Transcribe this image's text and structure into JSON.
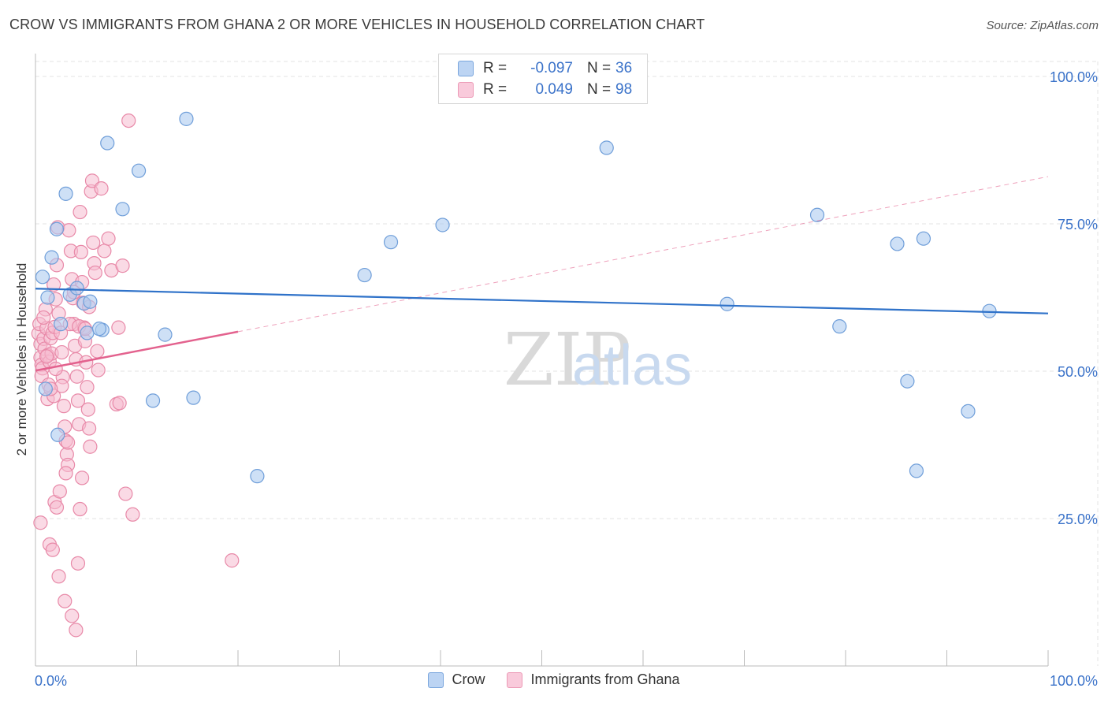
{
  "title": "CROW VS IMMIGRANTS FROM GHANA 2 OR MORE VEHICLES IN HOUSEHOLD CORRELATION CHART",
  "source": "Source: ZipAtlas.com",
  "watermark": {
    "zip": "ZIP",
    "atlas": "atlas"
  },
  "legend_top": {
    "rows": [
      {
        "r_label": "R =",
        "r_value": "-0.097",
        "n_label": "N =",
        "n_value": "36"
      },
      {
        "r_label": "R =",
        "r_value": "0.049",
        "n_label": "N =",
        "n_value": "98"
      }
    ]
  },
  "legend_bottom": {
    "crow": "Crow",
    "ghana": "Immigrants from Ghana"
  },
  "colors": {
    "crow_fill": "#aecbf0",
    "crow_stroke": "#6f9ed9",
    "crow_line": "#2f72c9",
    "ghana_fill": "#f6bcd0",
    "ghana_stroke": "#e889a8",
    "ghana_line": "#e3628e",
    "axis_text": "#3a72c9",
    "grid": "#e3e3e3"
  },
  "chart_data": {
    "type": "scatter",
    "title": "CROW VS IMMIGRANTS FROM GHANA 2 OR MORE VEHICLES IN HOUSEHOLD CORRELATION CHART",
    "xlabel": "",
    "ylabel": "2 or more Vehicles in Household",
    "xlim": [
      0,
      100
    ],
    "ylim": [
      0,
      100
    ],
    "x_tick_labels": [
      "0.0%",
      "100.0%"
    ],
    "y_tick_labels": [
      {
        "value": 100,
        "label": "100.0%"
      },
      {
        "value": 75,
        "label": "75.0%"
      },
      {
        "value": 50,
        "label": "50.0%"
      },
      {
        "value": 25,
        "label": "25.0%"
      }
    ],
    "series": [
      {
        "name": "Crow",
        "r": -0.097,
        "n": 36,
        "trend": {
          "x": [
            0,
            100
          ],
          "y": [
            64.0,
            59.8
          ],
          "dashed_extension": false
        },
        "points": [
          [
            0.7,
            66.0
          ],
          [
            1.2,
            62.5
          ],
          [
            1.6,
            69.3
          ],
          [
            2.1,
            74.1
          ],
          [
            2.5,
            58.0
          ],
          [
            3.0,
            80.1
          ],
          [
            3.4,
            63.0
          ],
          [
            4.1,
            64.1
          ],
          [
            4.8,
            61.5
          ],
          [
            5.4,
            61.8
          ],
          [
            6.6,
            57.0
          ],
          [
            5.1,
            56.5
          ],
          [
            7.1,
            88.7
          ],
          [
            8.6,
            77.5
          ],
          [
            10.2,
            84.0
          ],
          [
            12.8,
            56.2
          ],
          [
            14.9,
            92.8
          ],
          [
            15.6,
            45.5
          ],
          [
            11.6,
            45.0
          ],
          [
            21.9,
            32.2
          ],
          [
            32.5,
            66.3
          ],
          [
            35.1,
            71.9
          ],
          [
            40.2,
            74.8
          ],
          [
            56.4,
            87.9
          ],
          [
            68.3,
            61.4
          ],
          [
            77.2,
            76.5
          ],
          [
            79.4,
            57.6
          ],
          [
            85.1,
            71.6
          ],
          [
            86.1,
            48.3
          ],
          [
            87.7,
            72.5
          ],
          [
            87.0,
            33.1
          ],
          [
            92.1,
            43.2
          ],
          [
            94.2,
            60.2
          ],
          [
            1.0,
            47.0
          ],
          [
            2.2,
            39.2
          ],
          [
            6.3,
            57.2
          ]
        ]
      },
      {
        "name": "Immigrants from Ghana",
        "r": 0.049,
        "n": 98,
        "trend": {
          "x": [
            0,
            20
          ],
          "y": [
            50.1,
            56.7
          ],
          "dashed_extension_to": [
            100,
            83.0
          ]
        },
        "points": [
          [
            0.3,
            56.4
          ],
          [
            0.4,
            58.0
          ],
          [
            0.5,
            54.6
          ],
          [
            0.5,
            52.3
          ],
          [
            0.6,
            51.1
          ],
          [
            0.7,
            50.5
          ],
          [
            0.6,
            49.2
          ],
          [
            0.8,
            55.5
          ],
          [
            0.9,
            53.8
          ],
          [
            1.0,
            60.5
          ],
          [
            1.1,
            57.3
          ],
          [
            1.2,
            52.7
          ],
          [
            1.2,
            45.3
          ],
          [
            1.3,
            47.7
          ],
          [
            1.4,
            51.6
          ],
          [
            1.5,
            55.6
          ],
          [
            1.6,
            53.0
          ],
          [
            1.7,
            56.5
          ],
          [
            1.8,
            64.7
          ],
          [
            1.9,
            57.5
          ],
          [
            2.0,
            62.2
          ],
          [
            2.1,
            68.0
          ],
          [
            2.2,
            74.4
          ],
          [
            2.3,
            59.8
          ],
          [
            2.5,
            56.5
          ],
          [
            2.6,
            53.2
          ],
          [
            2.7,
            49.0
          ],
          [
            2.8,
            44.1
          ],
          [
            2.9,
            40.6
          ],
          [
            3.0,
            38.2
          ],
          [
            3.1,
            35.9
          ],
          [
            3.2,
            34.1
          ],
          [
            3.3,
            73.9
          ],
          [
            3.5,
            70.4
          ],
          [
            3.6,
            65.6
          ],
          [
            3.7,
            62.4
          ],
          [
            3.8,
            58.0
          ],
          [
            3.9,
            54.3
          ],
          [
            4.0,
            52.0
          ],
          [
            4.1,
            49.1
          ],
          [
            4.2,
            45.0
          ],
          [
            4.3,
            41.0
          ],
          [
            4.4,
            77.0
          ],
          [
            4.5,
            70.2
          ],
          [
            4.6,
            65.1
          ],
          [
            4.7,
            61.6
          ],
          [
            4.8,
            57.4
          ],
          [
            4.9,
            55.1
          ],
          [
            5.0,
            51.5
          ],
          [
            5.1,
            47.3
          ],
          [
            5.2,
            43.5
          ],
          [
            5.3,
            40.3
          ],
          [
            5.4,
            37.2
          ],
          [
            5.5,
            80.5
          ],
          [
            5.6,
            82.3
          ],
          [
            5.7,
            71.8
          ],
          [
            5.8,
            68.3
          ],
          [
            5.9,
            66.7
          ],
          [
            6.1,
            53.4
          ],
          [
            6.2,
            50.2
          ],
          [
            6.5,
            81.0
          ],
          [
            6.8,
            70.4
          ],
          [
            7.2,
            72.5
          ],
          [
            7.5,
            67.1
          ],
          [
            8.0,
            44.4
          ],
          [
            8.2,
            57.4
          ],
          [
            8.6,
            67.9
          ],
          [
            8.9,
            29.2
          ],
          [
            9.2,
            92.5
          ],
          [
            9.6,
            25.7
          ],
          [
            0.5,
            24.3
          ],
          [
            1.4,
            20.6
          ],
          [
            1.7,
            19.7
          ],
          [
            2.3,
            15.2
          ],
          [
            2.9,
            11.0
          ],
          [
            3.6,
            8.5
          ],
          [
            4.0,
            6.1
          ],
          [
            4.2,
            17.4
          ],
          [
            4.4,
            26.6
          ],
          [
            4.6,
            31.9
          ],
          [
            1.9,
            27.8
          ],
          [
            2.1,
            26.9
          ],
          [
            2.4,
            29.6
          ],
          [
            3.0,
            32.7
          ],
          [
            3.2,
            37.9
          ],
          [
            1.8,
            45.8
          ],
          [
            2.6,
            47.5
          ],
          [
            3.4,
            58.0
          ],
          [
            3.8,
            63.4
          ],
          [
            4.3,
            57.6
          ],
          [
            5.3,
            60.9
          ],
          [
            1.1,
            52.5
          ],
          [
            1.5,
            47.0
          ],
          [
            2.0,
            50.4
          ],
          [
            4.9,
            57.2
          ],
          [
            8.3,
            44.6
          ],
          [
            19.4,
            17.9
          ],
          [
            0.8,
            59.1
          ]
        ]
      }
    ]
  }
}
